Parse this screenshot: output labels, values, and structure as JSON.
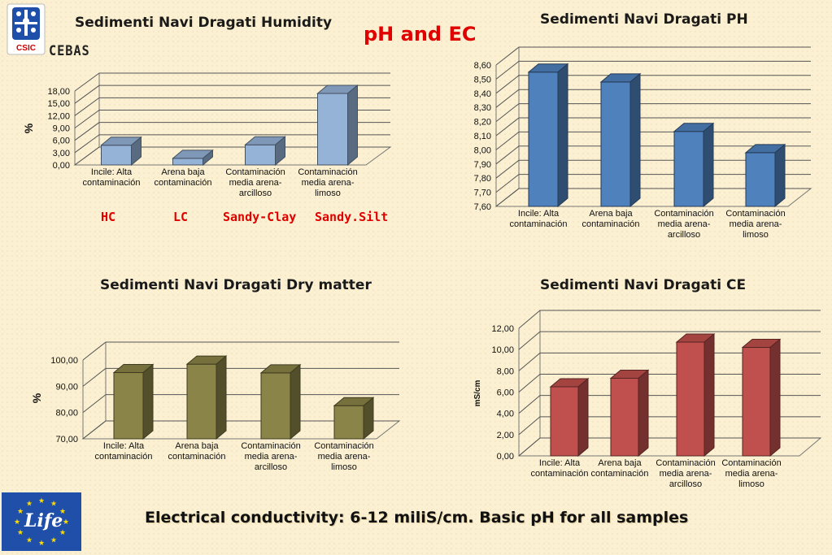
{
  "headline": "pH and EC",
  "footer": "Electrical conductivity: 6-12 miliS/cm. Basic pH for all samples",
  "logo_top": {
    "csic": "CSIC",
    "cebas": "CEBAS"
  },
  "logo_bottom": {
    "text": "Life"
  },
  "sample_codes": [
    "HC",
    "LC",
    "Sandy-Clay",
    "Sandy.Silt"
  ],
  "colors": {
    "humidity": "#95b3d7",
    "ph": "#4f81bd",
    "dry": "#8b8448",
    "ce": "#c0504d",
    "headline": "#e00000",
    "eu_blue": "#1f4fa8"
  },
  "chart_data": [
    {
      "id": "humidity",
      "type": "bar",
      "title": "Sedimenti Navi Dragati Humidity",
      "ylabel": "%",
      "categories": [
        [
          "Incile: Alta",
          "contaminación"
        ],
        [
          "Arena baja",
          "contaminación"
        ],
        [
          "Contaminación",
          "media arena-",
          "arcilloso"
        ],
        [
          "Contaminación",
          "media arena-",
          "limoso"
        ]
      ],
      "values": [
        4.8,
        1.6,
        4.9,
        17.4
      ],
      "ylim": [
        0,
        18
      ],
      "ticks": [
        "0,00",
        "3,00",
        "6,00",
        "9,00",
        "12,00",
        "15,00",
        "18,00"
      ],
      "tick_values": [
        0,
        3,
        6,
        9,
        12,
        15,
        18
      ],
      "grid": true
    },
    {
      "id": "ph",
      "type": "bar",
      "title": "Sedimenti Navi Dragati PH",
      "ylabel": "",
      "categories": [
        [
          "Incile: Alta",
          "contaminación"
        ],
        [
          "Arena baja",
          "contaminación"
        ],
        [
          "Contaminación",
          "media arena-",
          "arcilloso"
        ],
        [
          "Contaminación",
          "media arena-",
          "limoso"
        ]
      ],
      "values": [
        8.55,
        8.48,
        8.13,
        7.98
      ],
      "ylim": [
        7.6,
        8.6
      ],
      "ticks": [
        "7,60",
        "7,70",
        "7,80",
        "7,90",
        "8,00",
        "8,10",
        "8,20",
        "8,30",
        "8,40",
        "8,50",
        "8,60"
      ],
      "tick_values": [
        7.6,
        7.7,
        7.8,
        7.9,
        8.0,
        8.1,
        8.2,
        8.3,
        8.4,
        8.5,
        8.6
      ],
      "grid": true
    },
    {
      "id": "dry",
      "type": "bar",
      "title": "Sedimenti Navi Dragati Dry matter",
      "ylabel": "%",
      "categories": [
        [
          "Incile: Alta",
          "contaminación"
        ],
        [
          "Arena baja",
          "contaminación"
        ],
        [
          "Contaminación",
          "media arena-",
          "arcilloso"
        ],
        [
          "Contaminación",
          "media arena-",
          "limoso"
        ]
      ],
      "values": [
        95.2,
        98.4,
        95.1,
        82.6
      ],
      "ylim": [
        70,
        100
      ],
      "ticks": [
        "70,00",
        "80,00",
        "90,00",
        "100,00"
      ],
      "tick_values": [
        70,
        80,
        90,
        100
      ],
      "grid": true
    },
    {
      "id": "ce",
      "type": "bar",
      "title": "Sedimenti Navi Dragati CE",
      "ylabel": "mS/cm",
      "categories": [
        [
          "Incile: Alta",
          "contaminación"
        ],
        [
          "Arena baja",
          "contaminación"
        ],
        [
          "Contaminación",
          "media arena-",
          "arcilloso"
        ],
        [
          "Contaminación",
          "media arena-",
          "limoso"
        ]
      ],
      "values": [
        6.5,
        7.3,
        10.7,
        10.2
      ],
      "ylim": [
        0,
        12
      ],
      "ticks": [
        "0,00",
        "2,00",
        "4,00",
        "6,00",
        "8,00",
        "10,00",
        "12,00"
      ],
      "tick_values": [
        0,
        2,
        4,
        6,
        8,
        10,
        12
      ],
      "grid": true
    }
  ]
}
